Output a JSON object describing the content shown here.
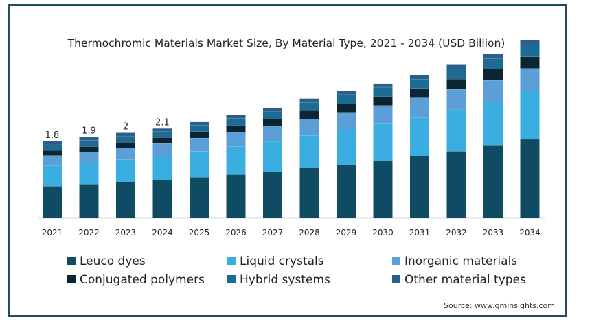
{
  "chart_data": {
    "type": "bar",
    "stacked": true,
    "title": "Thermochromic Materials Market Size, By Material Type, 2021 - 2034 (USD Billion)",
    "xlabel": "",
    "ylabel": "",
    "ylim": [
      0,
      4.0
    ],
    "grid": false,
    "legend_position": "bottom",
    "categories": [
      "2021",
      "2022",
      "2023",
      "2024",
      "2025",
      "2026",
      "2027",
      "2028",
      "2029",
      "2030",
      "2031",
      "2032",
      "2033",
      "2034"
    ],
    "totals_labels": [
      "1.8",
      "1.9",
      "2",
      "2.1",
      "",
      "",
      "",
      "",
      "",
      "",
      "",
      "",
      "",
      ""
    ],
    "series": [
      {
        "name": "Leuco dyes",
        "color": "#0f4c64",
        "values": [
          0.75,
          0.8,
          0.85,
          0.9,
          0.96,
          1.02,
          1.09,
          1.18,
          1.26,
          1.35,
          1.45,
          1.57,
          1.7,
          1.85
        ]
      },
      {
        "name": "Liquid crystals",
        "color": "#3aaee0",
        "values": [
          0.48,
          0.5,
          0.53,
          0.56,
          0.61,
          0.66,
          0.71,
          0.76,
          0.81,
          0.86,
          0.91,
          0.97,
          1.03,
          1.13
        ]
      },
      {
        "name": "Inorganic materials",
        "color": "#5b9fd6",
        "values": [
          0.24,
          0.25,
          0.27,
          0.29,
          0.31,
          0.33,
          0.35,
          0.38,
          0.41,
          0.43,
          0.46,
          0.48,
          0.5,
          0.53
        ]
      },
      {
        "name": "Conjugated polymers",
        "color": "#0b2533",
        "values": [
          0.12,
          0.13,
          0.13,
          0.14,
          0.15,
          0.16,
          0.17,
          0.2,
          0.2,
          0.21,
          0.22,
          0.24,
          0.26,
          0.27
        ]
      },
      {
        "name": "Hybrid systems",
        "color": "#1b6b95",
        "values": [
          0.13,
          0.14,
          0.14,
          0.14,
          0.15,
          0.17,
          0.18,
          0.19,
          0.22,
          0.22,
          0.22,
          0.23,
          0.25,
          0.28
        ]
      },
      {
        "name": "Other material types",
        "color": "#2a5f8c",
        "values": [
          0.08,
          0.08,
          0.08,
          0.07,
          0.07,
          0.07,
          0.08,
          0.09,
          0.08,
          0.08,
          0.09,
          0.1,
          0.1,
          0.11
        ]
      }
    ],
    "source": "Source: www.gminsights.com"
  }
}
